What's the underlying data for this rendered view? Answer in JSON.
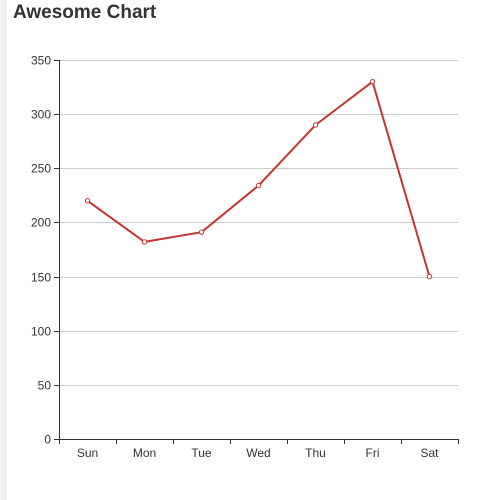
{
  "chart_data": {
    "type": "line",
    "title": "Awesome Chart",
    "categories": [
      "Sun",
      "Mon",
      "Tue",
      "Wed",
      "Thu",
      "Fri",
      "Sat"
    ],
    "series": [
      {
        "values": [
          220,
          182,
          191,
          234,
          290,
          330,
          150
        ]
      }
    ],
    "ylim": [
      0,
      350
    ],
    "yticks": [
      0,
      50,
      100,
      150,
      200,
      250,
      300,
      350
    ],
    "grid": true,
    "colors": {
      "line": "#c23531",
      "grid": "#cccccc",
      "axis": "#333333",
      "text": "#333333"
    }
  }
}
